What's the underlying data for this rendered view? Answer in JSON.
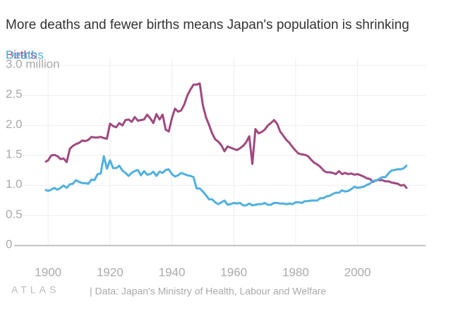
{
  "chart_data": {
    "type": "line",
    "title": "More deaths and fewer births means Japan's population is shrinking",
    "source": "| Data: Japan's Ministry of Health, Labour and Welfare",
    "logo": "ATLAS",
    "x": [
      1899,
      1900,
      1901,
      1902,
      1903,
      1904,
      1905,
      1906,
      1907,
      1908,
      1909,
      1910,
      1911,
      1912,
      1913,
      1914,
      1915,
      1916,
      1917,
      1918,
      1919,
      1920,
      1921,
      1922,
      1923,
      1924,
      1925,
      1926,
      1927,
      1928,
      1929,
      1930,
      1931,
      1932,
      1933,
      1934,
      1935,
      1936,
      1937,
      1938,
      1939,
      1940,
      1941,
      1942,
      1943,
      1944,
      1945,
      1946,
      1947,
      1948,
      1949,
      1950,
      1951,
      1952,
      1953,
      1954,
      1955,
      1956,
      1957,
      1958,
      1959,
      1960,
      1961,
      1962,
      1963,
      1964,
      1965,
      1966,
      1967,
      1968,
      1969,
      1970,
      1971,
      1972,
      1973,
      1974,
      1975,
      1976,
      1977,
      1978,
      1979,
      1980,
      1981,
      1982,
      1983,
      1984,
      1985,
      1986,
      1987,
      1988,
      1989,
      1990,
      1991,
      1992,
      1993,
      1994,
      1995,
      1996,
      1997,
      1998,
      1999,
      2000,
      2001,
      2002,
      2003,
      2004,
      2005,
      2006,
      2007,
      2008,
      2009,
      2010,
      2011,
      2012,
      2013,
      2014,
      2015,
      2016
    ],
    "series": [
      {
        "name": "Births",
        "color": "#a0497f",
        "values": [
          1.39,
          1.42,
          1.5,
          1.51,
          1.49,
          1.44,
          1.45,
          1.39,
          1.61,
          1.66,
          1.69,
          1.71,
          1.75,
          1.74,
          1.76,
          1.81,
          1.8,
          1.8,
          1.81,
          1.79,
          1.78,
          2.03,
          1.99,
          1.97,
          2.04,
          2.0,
          2.09,
          2.1,
          2.06,
          2.14,
          2.08,
          2.09,
          2.1,
          2.18,
          2.12,
          2.04,
          2.19,
          2.1,
          2.18,
          1.93,
          1.9,
          2.12,
          2.28,
          2.23,
          2.25,
          2.35,
          2.5,
          2.6,
          2.68,
          2.68,
          2.7,
          2.34,
          2.14,
          2.01,
          1.87,
          1.77,
          1.73,
          1.67,
          1.57,
          1.65,
          1.63,
          1.61,
          1.59,
          1.62,
          1.66,
          1.72,
          1.82,
          1.36,
          1.94,
          1.87,
          1.89,
          1.93,
          2.0,
          2.04,
          2.09,
          2.03,
          1.9,
          1.83,
          1.76,
          1.71,
          1.64,
          1.58,
          1.53,
          1.52,
          1.51,
          1.49,
          1.43,
          1.38,
          1.35,
          1.31,
          1.25,
          1.22,
          1.22,
          1.21,
          1.19,
          1.24,
          1.19,
          1.21,
          1.19,
          1.2,
          1.18,
          1.19,
          1.17,
          1.15,
          1.12,
          1.11,
          1.06,
          1.09,
          1.09,
          1.09,
          1.07,
          1.07,
          1.05,
          1.04,
          1.03,
          1.0,
          1.01,
          0.95
        ]
      },
      {
        "name": "Deaths",
        "color": "#4fb0e0",
        "values": [
          0.93,
          0.91,
          0.93,
          0.96,
          0.93,
          0.96,
          1.0,
          0.96,
          1.02,
          1.03,
          1.09,
          1.06,
          1.04,
          1.04,
          1.03,
          1.1,
          1.09,
          1.19,
          1.2,
          1.49,
          1.28,
          1.42,
          1.29,
          1.29,
          1.33,
          1.25,
          1.21,
          1.16,
          1.21,
          1.24,
          1.26,
          1.17,
          1.24,
          1.18,
          1.19,
          1.23,
          1.16,
          1.23,
          1.21,
          1.26,
          1.27,
          1.19,
          1.15,
          1.17,
          1.21,
          1.19,
          1.17,
          1.16,
          1.14,
          0.95,
          0.95,
          0.9,
          0.84,
          0.77,
          0.77,
          0.72,
          0.69,
          0.72,
          0.75,
          0.68,
          0.69,
          0.71,
          0.7,
          0.71,
          0.67,
          0.67,
          0.7,
          0.67,
          0.68,
          0.69,
          0.69,
          0.71,
          0.68,
          0.68,
          0.71,
          0.71,
          0.7,
          0.7,
          0.69,
          0.7,
          0.69,
          0.72,
          0.72,
          0.71,
          0.74,
          0.74,
          0.75,
          0.75,
          0.75,
          0.79,
          0.79,
          0.82,
          0.83,
          0.86,
          0.88,
          0.88,
          0.92,
          0.9,
          0.91,
          0.94,
          0.98,
          0.96,
          0.97,
          0.98,
          1.01,
          1.03,
          1.08,
          1.08,
          1.11,
          1.14,
          1.14,
          1.2,
          1.25,
          1.26,
          1.27,
          1.27,
          1.29,
          1.34
        ]
      }
    ],
    "xlim": [
      1889,
      2022
    ],
    "xticks": [
      1900,
      1920,
      1940,
      1960,
      1980,
      2000
    ],
    "ylim": [
      0,
      3.0
    ],
    "yticks": [
      0,
      0.5,
      {
        "value": 1,
        "label": "1.0"
      },
      1.5,
      {
        "value": 2,
        "label": "2.0"
      },
      2.5,
      {
        "value": 3,
        "label": "3.0 million"
      }
    ],
    "grid": true
  }
}
